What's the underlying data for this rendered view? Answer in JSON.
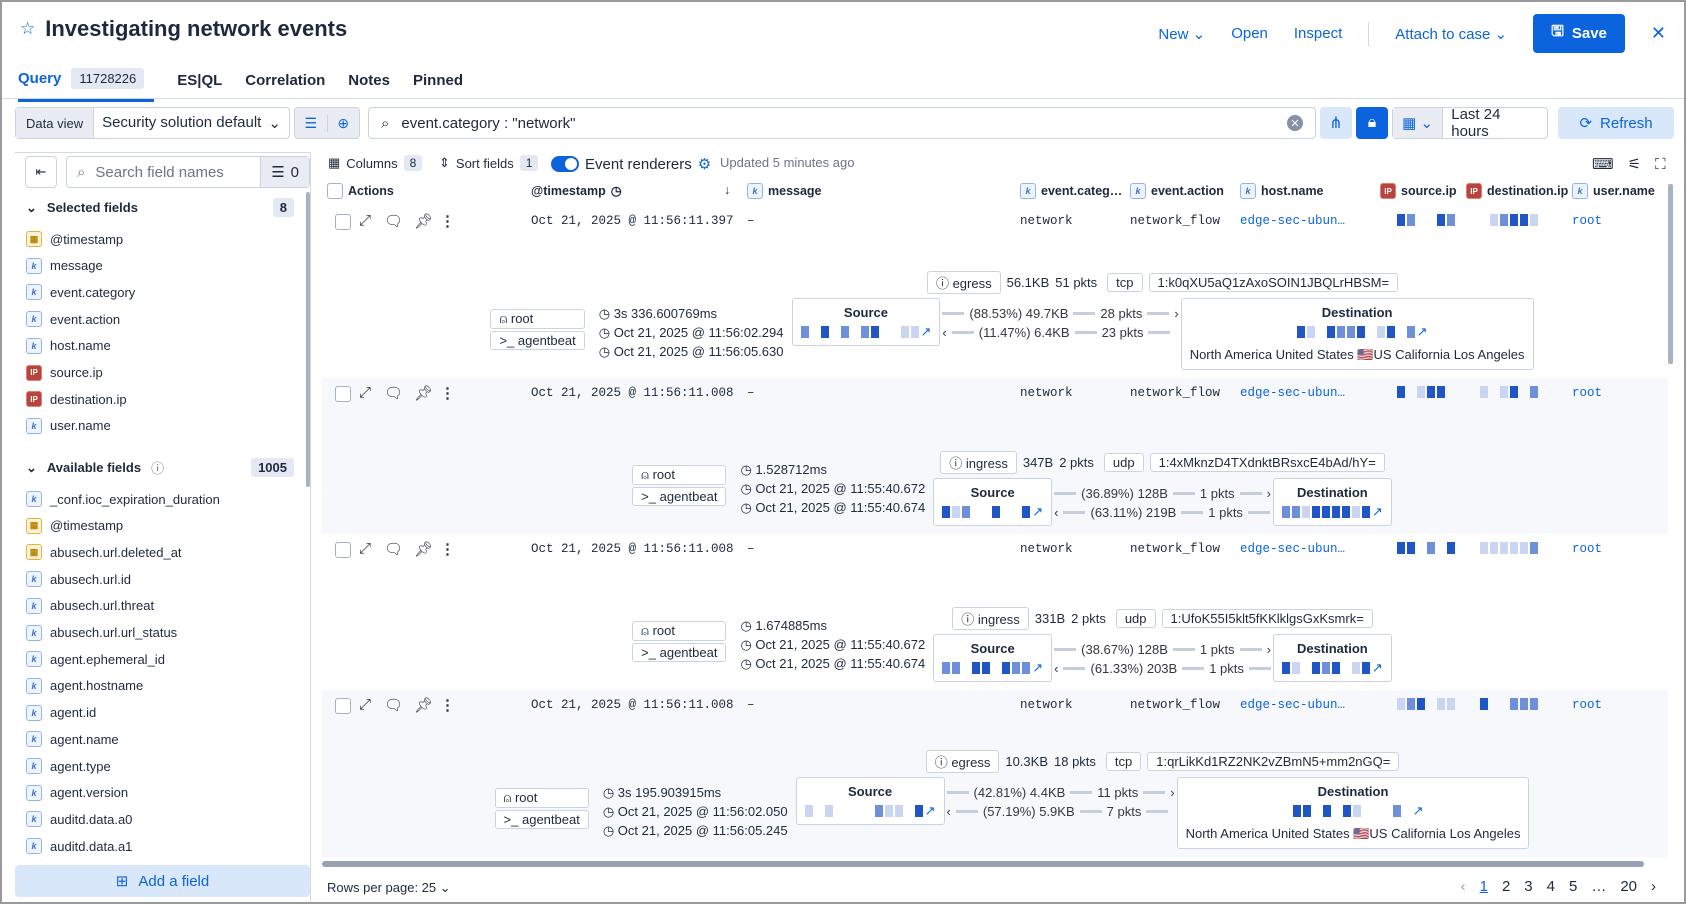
{
  "header": {
    "title": "Investigating network events",
    "actions": {
      "new": "New",
      "open": "Open",
      "inspect": "Inspect",
      "attach": "Attach to case",
      "save": "Save"
    }
  },
  "tabs": [
    {
      "label": "Query",
      "count": "11728226"
    },
    {
      "label": "ES|QL"
    },
    {
      "label": "Correlation"
    },
    {
      "label": "Notes"
    },
    {
      "label": "Pinned"
    }
  ],
  "toolbar": {
    "data_view_label": "Data view",
    "data_view": "Security solution default",
    "query": "event.category : \"network\"",
    "date_range": "Last 24 hours",
    "refresh": "Refresh"
  },
  "sidebar": {
    "search_placeholder": "Search field names",
    "filter_count": "0",
    "selected": {
      "title": "Selected fields",
      "count": "8",
      "fields": [
        {
          "name": "@timestamp",
          "type": "date"
        },
        {
          "name": "message",
          "type": "k"
        },
        {
          "name": "event.category",
          "type": "k"
        },
        {
          "name": "event.action",
          "type": "k"
        },
        {
          "name": "host.name",
          "type": "k"
        },
        {
          "name": "source.ip",
          "type": "ip"
        },
        {
          "name": "destination.ip",
          "type": "ip"
        },
        {
          "name": "user.name",
          "type": "k"
        }
      ]
    },
    "available": {
      "title": "Available fields",
      "count": "1005",
      "fields": [
        {
          "name": "_conf.ioc_expiration_duration",
          "type": "k"
        },
        {
          "name": "@timestamp",
          "type": "date"
        },
        {
          "name": "abusech.url.deleted_at",
          "type": "date"
        },
        {
          "name": "abusech.url.id",
          "type": "k"
        },
        {
          "name": "abusech.url.threat",
          "type": "k"
        },
        {
          "name": "abusech.url.url_status",
          "type": "k"
        },
        {
          "name": "agent.ephemeral_id",
          "type": "k"
        },
        {
          "name": "agent.hostname",
          "type": "k"
        },
        {
          "name": "agent.id",
          "type": "k"
        },
        {
          "name": "agent.name",
          "type": "k"
        },
        {
          "name": "agent.type",
          "type": "k"
        },
        {
          "name": "agent.version",
          "type": "k"
        },
        {
          "name": "auditd.data.a0",
          "type": "k"
        },
        {
          "name": "auditd.data.a1",
          "type": "k"
        }
      ]
    },
    "add_field": "Add a field"
  },
  "grid": {
    "columns_label": "Columns",
    "columns_count": "8",
    "sort_label": "Sort fields",
    "sort_count": "1",
    "renderers_label": "Event renderers",
    "renderers_on": true,
    "updated": "Updated 5 minutes ago",
    "headers": {
      "actions": "Actions",
      "timestamp": "@timestamp",
      "message": "message",
      "category": "event.categ…",
      "action": "event.action",
      "host": "host.name",
      "source_ip": "source.ip",
      "dest_ip": "destination.ip",
      "user": "user.name"
    },
    "rows": [
      {
        "timestamp": "Oct 21, 2025 @ 11:56:11.397",
        "message": "–",
        "category": "network",
        "action": "network_flow",
        "host": "edge-sec-ubun…",
        "user": "root",
        "r": {
          "user": "root",
          "process": "agentbeat",
          "duration": "3s 336.600769ms",
          "start": "Oct 21, 2025 @ 11:56:02.294",
          "end": "Oct 21, 2025 @ 11:56:05.630",
          "direction": "egress",
          "bytes": "56.1KB",
          "packets": "51 pkts",
          "transport": "tcp",
          "community_id": "1:k0qXU5aQ1zAxoSOIN1JBQLrHBSM=",
          "src_label": "Source",
          "dst_label": "Destination",
          "out_pct": "(88.53%) 49.7KB",
          "out_pkts": "28 pkts",
          "in_pct": "(11.47%) 6.4KB",
          "in_pkts": "23 pkts",
          "geo": "North America United States 🇺🇸US California Los Angeles"
        }
      },
      {
        "timestamp": "Oct 21, 2025 @ 11:56:11.008",
        "message": "–",
        "category": "network",
        "action": "network_flow",
        "host": "edge-sec-ubun…",
        "user": "root",
        "r": {
          "user": "root",
          "process": "agentbeat",
          "duration": "1.528712ms",
          "start": "Oct 21, 2025 @ 11:55:40.672",
          "end": "Oct 21, 2025 @ 11:55:40.674",
          "direction": "ingress",
          "bytes": "347B",
          "packets": "2 pkts",
          "transport": "udp",
          "community_id": "1:4xMknzD4TXdnktBRsxcE4bAd/hY=",
          "src_label": "Source",
          "dst_label": "Destination",
          "out_pct": "(36.89%) 128B",
          "out_pkts": "1 pkts",
          "in_pct": "(63.11%) 219B",
          "in_pkts": "1 pkts"
        }
      },
      {
        "timestamp": "Oct 21, 2025 @ 11:56:11.008",
        "message": "–",
        "category": "network",
        "action": "network_flow",
        "host": "edge-sec-ubun…",
        "user": "root",
        "r": {
          "user": "root",
          "process": "agentbeat",
          "duration": "1.674885ms",
          "start": "Oct 21, 2025 @ 11:55:40.672",
          "end": "Oct 21, 2025 @ 11:55:40.674",
          "direction": "ingress",
          "bytes": "331B",
          "packets": "2 pkts",
          "transport": "udp",
          "community_id": "1:UfoK55I5klt5fKKlklgsGxKsmrk=",
          "src_label": "Source",
          "dst_label": "Destination",
          "out_pct": "(38.67%) 128B",
          "out_pkts": "1 pkts",
          "in_pct": "(61.33%) 203B",
          "in_pkts": "1 pkts"
        }
      },
      {
        "timestamp": "Oct 21, 2025 @ 11:56:11.008",
        "message": "–",
        "category": "network",
        "action": "network_flow",
        "host": "edge-sec-ubun…",
        "user": "root",
        "r": {
          "user": "root",
          "process": "agentbeat",
          "duration": "3s 195.903915ms",
          "start": "Oct 21, 2025 @ 11:56:02.050",
          "end": "Oct 21, 2025 @ 11:56:05.245",
          "direction": "egress",
          "bytes": "10.3KB",
          "packets": "18 pkts",
          "transport": "tcp",
          "community_id": "1:qrLikKd1RZ2NK2vZBmN5+mm2nGQ=",
          "src_label": "Source",
          "dst_label": "Destination",
          "out_pct": "(42.81%) 4.4KB",
          "out_pkts": "11 pkts",
          "in_pct": "(57.19%) 5.9KB",
          "in_pkts": "7 pkts",
          "geo": "North America United States 🇺🇸US California Los Angeles"
        }
      }
    ]
  },
  "footer": {
    "rows_per_page": "Rows per page: 25",
    "pages": [
      "1",
      "2",
      "3",
      "4",
      "5",
      "…",
      "20"
    ],
    "current_page": "1"
  },
  "colors": {
    "accent": "#0b64dd",
    "redacted": "#1f55c4"
  }
}
